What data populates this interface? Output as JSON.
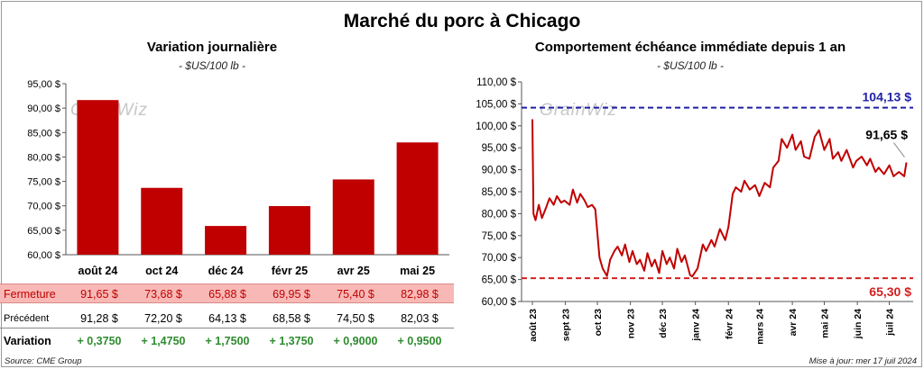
{
  "title": "Marché du porc à Chicago",
  "left_panel": {
    "title": "Variation  journalière",
    "unit": "- $US/100 lb -",
    "watermark": "GrainWiz"
  },
  "right_panel": {
    "title": "Comportement  échéance immédiate depuis 1 an",
    "unit": "- $US/100 lb -",
    "watermark": "GrainWiz"
  },
  "table": {
    "fermeture_label": "Fermeture",
    "precedent_label": "Précédent",
    "variation_label": "Variation",
    "fermeture": [
      "91,65  $",
      "73,68  $",
      "65,88  $",
      "69,95  $",
      "75,40  $",
      "82,98  $"
    ],
    "precedent": [
      "91,28  $",
      "72,20  $",
      "64,13  $",
      "68,58  $",
      "74,50  $",
      "82,03  $"
    ],
    "variation": [
      "+ 0,3750",
      "+ 1,4750",
      "+ 1,7500",
      "+ 1,3750",
      "+ 0,9000",
      "+ 0,9500"
    ]
  },
  "footer": {
    "source": "Source: CME Group",
    "updated": "Mise à jour: mer 17 juil 2024"
  },
  "colors": {
    "bar": "#c00000",
    "line": "#c00000",
    "high_line": "#1f1fa8",
    "low_line": "#d42020",
    "table_highlight": "#f8b9b6",
    "positive": "#2e8b2e"
  },
  "chart_data": [
    {
      "type": "bar",
      "title": "Variation  journalière",
      "subtitle": "- $US/100 lb -",
      "categories": [
        "août 24",
        "oct 24",
        "déc 24",
        "févr 25",
        "avr 25",
        "mai 25"
      ],
      "values": [
        91.65,
        73.68,
        65.88,
        69.95,
        75.4,
        82.98
      ],
      "ylim": [
        60,
        95
      ],
      "yticks": [
        60,
        65,
        70,
        75,
        80,
        85,
        90,
        95
      ],
      "ytick_labels": [
        "60,00 $",
        "65,00 $",
        "70,00 $",
        "75,00 $",
        "80,00 $",
        "85,00 $",
        "90,00 $",
        "95,00 $"
      ],
      "grid": false
    },
    {
      "type": "line",
      "title": "Comportement  échéance immédiate depuis 1 an",
      "subtitle": "- $US/100 lb -",
      "xlim": [
        "2023-08-01",
        "2024-07-20"
      ],
      "ylim": [
        60,
        110
      ],
      "yticks": [
        60,
        65,
        70,
        75,
        80,
        85,
        90,
        95,
        100,
        105,
        110
      ],
      "ytick_labels": [
        "60,00 $",
        "65,00 $",
        "70,00 $",
        "75,00 $",
        "80,00 $",
        "85,00 $",
        "90,00 $",
        "95,00 $",
        "100,00 $",
        "105,00 $",
        "110,00 $"
      ],
      "xticks": [
        "2023-08-01",
        "2023-09-01",
        "2023-10-01",
        "2023-11-01",
        "2023-12-01",
        "2024-01-01",
        "2024-02-01",
        "2024-03-01",
        "2024-04-01",
        "2024-05-01",
        "2024-06-01",
        "2024-07-01"
      ],
      "xtick_labels": [
        "août 23",
        "sept 23",
        "oct 23",
        "nov 23",
        "déc 23",
        "janv 24",
        "févr 24",
        "mars 24",
        "avr 24",
        "mai 24",
        "juin 24",
        "juil 24"
      ],
      "x": [
        "2023-08-01",
        "2023-08-02",
        "2023-08-04",
        "2023-08-07",
        "2023-08-10",
        "2023-08-14",
        "2023-08-17",
        "2023-08-21",
        "2023-08-24",
        "2023-08-28",
        "2023-08-31",
        "2023-09-05",
        "2023-09-08",
        "2023-09-12",
        "2023-09-15",
        "2023-09-19",
        "2023-09-22",
        "2023-09-26",
        "2023-09-29",
        "2023-10-03",
        "2023-10-06",
        "2023-10-10",
        "2023-10-13",
        "2023-10-17",
        "2023-10-20",
        "2023-10-24",
        "2023-10-27",
        "2023-10-31",
        "2023-11-03",
        "2023-11-07",
        "2023-11-10",
        "2023-11-14",
        "2023-11-17",
        "2023-11-21",
        "2023-11-24",
        "2023-11-28",
        "2023-12-01",
        "2023-12-05",
        "2023-12-08",
        "2023-12-12",
        "2023-12-15",
        "2023-12-19",
        "2023-12-22",
        "2023-12-27",
        "2023-12-29",
        "2024-01-03",
        "2024-01-08",
        "2024-01-11",
        "2024-01-16",
        "2024-01-19",
        "2024-01-24",
        "2024-01-29",
        "2024-02-01",
        "2024-02-05",
        "2024-02-08",
        "2024-02-13",
        "2024-02-16",
        "2024-02-21",
        "2024-02-26",
        "2024-03-01",
        "2024-03-06",
        "2024-03-11",
        "2024-03-14",
        "2024-03-19",
        "2024-03-22",
        "2024-03-27",
        "2024-04-01",
        "2024-04-04",
        "2024-04-09",
        "2024-04-12",
        "2024-04-17",
        "2024-04-22",
        "2024-04-26",
        "2024-05-01",
        "2024-05-06",
        "2024-05-09",
        "2024-05-14",
        "2024-05-17",
        "2024-05-22",
        "2024-05-28",
        "2024-05-31",
        "2024-06-05",
        "2024-06-10",
        "2024-06-13",
        "2024-06-18",
        "2024-06-21",
        "2024-06-26",
        "2024-07-01",
        "2024-07-05",
        "2024-07-10",
        "2024-07-15",
        "2024-07-17"
      ],
      "y": [
        101.5,
        80.0,
        78.5,
        82.0,
        79.0,
        81.5,
        83.5,
        82.0,
        84.0,
        82.5,
        83.0,
        82.0,
        85.5,
        82.5,
        84.5,
        83.0,
        81.5,
        82.0,
        81.0,
        70.0,
        67.5,
        65.8,
        69.5,
        71.5,
        72.5,
        70.5,
        73.0,
        69.0,
        71.5,
        68.5,
        69.5,
        67.0,
        71.0,
        68.0,
        69.5,
        66.5,
        71.5,
        68.5,
        70.0,
        67.5,
        72.0,
        69.0,
        70.5,
        66.0,
        65.7,
        67.5,
        73.0,
        71.5,
        74.0,
        72.5,
        76.5,
        74.0,
        77.0,
        84.5,
        86.0,
        85.0,
        87.5,
        85.5,
        86.5,
        84.0,
        87.0,
        86.0,
        90.5,
        92.0,
        97.0,
        95.0,
        98.0,
        94.5,
        96.5,
        93.0,
        92.5,
        97.5,
        99.0,
        94.5,
        97.0,
        92.5,
        94.0,
        92.0,
        94.5,
        90.5,
        92.0,
        93.0,
        91.0,
        92.5,
        89.5,
        90.5,
        89.0,
        91.0,
        88.5,
        89.5,
        88.5,
        91.65
      ],
      "reference_lines": [
        {
          "value": 104.13,
          "label": "104,13 $",
          "style": "dashed"
        },
        {
          "value": 65.3,
          "label": "65,30 $",
          "style": "dashed"
        }
      ],
      "annotations": [
        {
          "text": "91,65 $",
          "x": "2024-07-17",
          "y": 91.65
        }
      ]
    }
  ]
}
